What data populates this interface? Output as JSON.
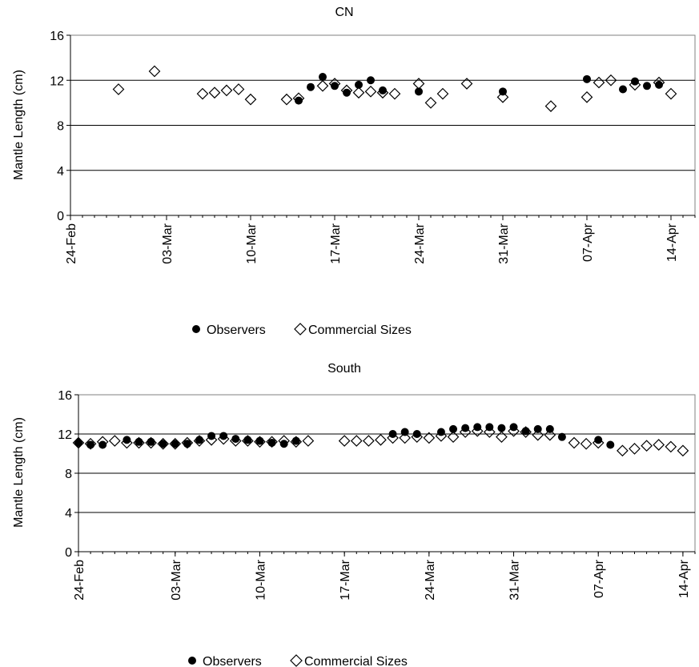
{
  "chart_data": [
    {
      "type": "scatter",
      "title": "CN",
      "xlabel": "",
      "ylabel": "Mantle Length (cm)",
      "x_range": [
        "2008-02-24",
        "2008-04-16"
      ],
      "xticks": [
        "24-Feb",
        "03-Mar",
        "10-Mar",
        "17-Mar",
        "24-Mar",
        "31-Mar",
        "07-Apr",
        "14-Apr"
      ],
      "xtick_dates": [
        "2008-02-24",
        "2008-03-03",
        "2008-03-10",
        "2008-03-17",
        "2008-03-24",
        "2008-03-31",
        "2008-04-07",
        "2008-04-14"
      ],
      "ylim": [
        0,
        16
      ],
      "yticks": [
        0,
        4,
        8,
        12,
        16
      ],
      "grid": "horizontal",
      "legend": "bottom",
      "series": [
        {
          "name": "Observers",
          "marker": "filled-circle",
          "color": "#000000",
          "points": [
            [
              "2008-03-14",
              10.2
            ],
            [
              "2008-03-15",
              11.4
            ],
            [
              "2008-03-16",
              12.3
            ],
            [
              "2008-03-17",
              11.5
            ],
            [
              "2008-03-18",
              10.9
            ],
            [
              "2008-03-19",
              11.6
            ],
            [
              "2008-03-20",
              12.0
            ],
            [
              "2008-03-21",
              11.1
            ],
            [
              "2008-03-24",
              11.0
            ],
            [
              "2008-03-31",
              11.0
            ],
            [
              "2008-04-07",
              12.1
            ],
            [
              "2008-04-10",
              11.2
            ],
            [
              "2008-04-11",
              11.9
            ],
            [
              "2008-04-12",
              11.5
            ],
            [
              "2008-04-13",
              11.6
            ]
          ]
        },
        {
          "name": "Commercial Sizes",
          "marker": "open-diamond",
          "color": "#000000",
          "points": [
            [
              "2008-02-28",
              11.2
            ],
            [
              "2008-03-02",
              12.8
            ],
            [
              "2008-03-06",
              10.8
            ],
            [
              "2008-03-07",
              10.9
            ],
            [
              "2008-03-08",
              11.1
            ],
            [
              "2008-03-09",
              11.2
            ],
            [
              "2008-03-10",
              10.3
            ],
            [
              "2008-03-13",
              10.3
            ],
            [
              "2008-03-14",
              10.4
            ],
            [
              "2008-03-16",
              11.5
            ],
            [
              "2008-03-17",
              11.7
            ],
            [
              "2008-03-18",
              11.1
            ],
            [
              "2008-03-19",
              10.9
            ],
            [
              "2008-03-20",
              11.0
            ],
            [
              "2008-03-21",
              10.9
            ],
            [
              "2008-03-22",
              10.8
            ],
            [
              "2008-03-24",
              11.7
            ],
            [
              "2008-03-25",
              10.0
            ],
            [
              "2008-03-26",
              10.8
            ],
            [
              "2008-03-28",
              11.7
            ],
            [
              "2008-03-31",
              10.5
            ],
            [
              "2008-04-04",
              9.7
            ],
            [
              "2008-04-07",
              10.5
            ],
            [
              "2008-04-08",
              11.8
            ],
            [
              "2008-04-09",
              12.0
            ],
            [
              "2008-04-11",
              11.6
            ],
            [
              "2008-04-13",
              11.8
            ],
            [
              "2008-04-14",
              10.8
            ]
          ]
        }
      ]
    },
    {
      "type": "scatter",
      "title": "South",
      "xlabel": "",
      "ylabel": "Mantle Length (cm)",
      "x_range": [
        "2008-02-24",
        "2008-04-15"
      ],
      "xticks": [
        "24-Feb",
        "03-Mar",
        "10-Mar",
        "17-Mar",
        "24-Mar",
        "31-Mar",
        "07-Apr",
        "14-Apr"
      ],
      "xtick_dates": [
        "2008-02-24",
        "2008-03-03",
        "2008-03-10",
        "2008-03-17",
        "2008-03-24",
        "2008-03-31",
        "2008-04-07",
        "2008-04-14"
      ],
      "ylim": [
        0,
        16
      ],
      "yticks": [
        0,
        4,
        8,
        12,
        16
      ],
      "grid": "horizontal",
      "legend": "bottom",
      "series": [
        {
          "name": "Observers",
          "marker": "filled-circle",
          "color": "#000000",
          "points": [
            [
              "2008-02-24",
              11.1
            ],
            [
              "2008-02-25",
              10.9
            ],
            [
              "2008-02-26",
              10.9
            ],
            [
              "2008-02-28",
              11.4
            ],
            [
              "2008-02-29",
              11.2
            ],
            [
              "2008-03-01",
              11.2
            ],
            [
              "2008-03-02",
              11.0
            ],
            [
              "2008-03-03",
              11.0
            ],
            [
              "2008-03-04",
              11.0
            ],
            [
              "2008-03-05",
              11.4
            ],
            [
              "2008-03-06",
              11.8
            ],
            [
              "2008-03-07",
              11.8
            ],
            [
              "2008-03-08",
              11.5
            ],
            [
              "2008-03-09",
              11.4
            ],
            [
              "2008-03-10",
              11.3
            ],
            [
              "2008-03-11",
              11.1
            ],
            [
              "2008-03-12",
              11.0
            ],
            [
              "2008-03-13",
              11.3
            ],
            [
              "2008-03-21",
              12.0
            ],
            [
              "2008-03-22",
              12.2
            ],
            [
              "2008-03-23",
              12.0
            ],
            [
              "2008-03-25",
              12.2
            ],
            [
              "2008-03-26",
              12.5
            ],
            [
              "2008-03-27",
              12.6
            ],
            [
              "2008-03-28",
              12.7
            ],
            [
              "2008-03-29",
              12.7
            ],
            [
              "2008-03-30",
              12.6
            ],
            [
              "2008-03-31",
              12.7
            ],
            [
              "2008-04-01",
              12.3
            ],
            [
              "2008-04-02",
              12.5
            ],
            [
              "2008-04-03",
              12.5
            ],
            [
              "2008-04-04",
              11.7
            ],
            [
              "2008-04-07",
              11.4
            ],
            [
              "2008-04-08",
              10.9
            ]
          ]
        },
        {
          "name": "Commercial Sizes",
          "marker": "open-diamond",
          "color": "#000000",
          "points": [
            [
              "2008-02-24",
              11.1
            ],
            [
              "2008-02-25",
              11.0
            ],
            [
              "2008-02-26",
              11.2
            ],
            [
              "2008-02-27",
              11.3
            ],
            [
              "2008-02-28",
              11.1
            ],
            [
              "2008-02-29",
              11.1
            ],
            [
              "2008-03-01",
              11.1
            ],
            [
              "2008-03-02",
              11.0
            ],
            [
              "2008-03-03",
              11.0
            ],
            [
              "2008-03-04",
              11.1
            ],
            [
              "2008-03-05",
              11.3
            ],
            [
              "2008-03-06",
              11.4
            ],
            [
              "2008-03-07",
              11.5
            ],
            [
              "2008-03-08",
              11.3
            ],
            [
              "2008-03-09",
              11.3
            ],
            [
              "2008-03-10",
              11.2
            ],
            [
              "2008-03-11",
              11.2
            ],
            [
              "2008-03-12",
              11.3
            ],
            [
              "2008-03-13",
              11.2
            ],
            [
              "2008-03-14",
              11.3
            ],
            [
              "2008-03-17",
              11.3
            ],
            [
              "2008-03-18",
              11.3
            ],
            [
              "2008-03-19",
              11.3
            ],
            [
              "2008-03-20",
              11.4
            ],
            [
              "2008-03-21",
              11.6
            ],
            [
              "2008-03-22",
              11.6
            ],
            [
              "2008-03-23",
              11.7
            ],
            [
              "2008-03-24",
              11.6
            ],
            [
              "2008-03-25",
              11.8
            ],
            [
              "2008-03-26",
              11.7
            ],
            [
              "2008-03-27",
              12.2
            ],
            [
              "2008-03-28",
              12.3
            ],
            [
              "2008-03-29",
              12.2
            ],
            [
              "2008-03-30",
              11.7
            ],
            [
              "2008-03-31",
              12.3
            ],
            [
              "2008-04-01",
              12.2
            ],
            [
              "2008-04-02",
              11.9
            ],
            [
              "2008-04-03",
              11.9
            ],
            [
              "2008-04-05",
              11.1
            ],
            [
              "2008-04-06",
              11.0
            ],
            [
              "2008-04-07",
              11.1
            ],
            [
              "2008-04-09",
              10.3
            ],
            [
              "2008-04-10",
              10.5
            ],
            [
              "2008-04-11",
              10.8
            ],
            [
              "2008-04-12",
              10.9
            ],
            [
              "2008-04-13",
              10.7
            ],
            [
              "2008-04-14",
              10.3
            ]
          ]
        }
      ]
    }
  ]
}
